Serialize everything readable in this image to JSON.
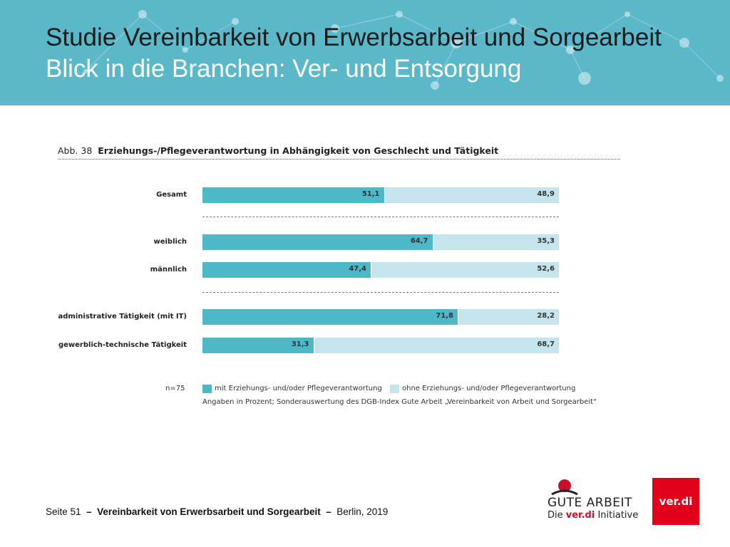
{
  "header": {
    "title_line1": "Studie Vereinbarkeit von Erwerbsarbeit und Sorgearbeit",
    "title_line2": "Blick in die Branchen: Ver- und Entsorgung"
  },
  "figure": {
    "number": "Abb. 38",
    "caption": "Erziehungs-/Pflegeverantwortung in Abhängigkeit von Geschlecht und Tätigkeit"
  },
  "chart_data": {
    "type": "bar",
    "orientation": "horizontal",
    "stacked": true,
    "title": "Erziehungs-/Pflegeverantwortung in Abhängigkeit von Geschlecht und Tätigkeit",
    "categories": [
      "Gesamt",
      "weiblich",
      "männlich",
      "administrative Tätigkeit (mit IT)",
      "gewerblich-technische Tätigkeit"
    ],
    "series": [
      {
        "name": "mit Erziehungs- und/oder Pflegeverantwortung",
        "color": "#4fb8c8",
        "values": [
          51.1,
          64.7,
          47.4,
          71.8,
          31.3
        ],
        "labels": [
          "51,1",
          "64,7",
          "47,4",
          "71,8",
          "31,3"
        ]
      },
      {
        "name": "ohne Erziehungs- und/oder Pflegeverantwortung",
        "color": "#c5e5ec",
        "values": [
          48.9,
          35.3,
          52.6,
          28.2,
          68.7
        ],
        "labels": [
          "48,9",
          "35,3",
          "52,6",
          "28,2",
          "68,7"
        ]
      }
    ],
    "xlim": [
      0,
      100
    ],
    "n_label": "n=75",
    "note": "Angaben in Prozent; Sonderauswertung des DGB-Index Gute Arbeit „Vereinbarkeit von Arbeit und Sorgearbeit“"
  },
  "footer": {
    "page": "Seite 51",
    "dash": "–",
    "study": "Vereinbarkeit von Erwerbsarbeit und Sorgearbeit",
    "place_year": "Berlin, 2019"
  },
  "logos": {
    "gute_arbeit": "GUTE ARBEIT",
    "die": "Die",
    "verdi_inline": "ver.di",
    "initiative": "Initiative",
    "verdi": "ver.di"
  }
}
